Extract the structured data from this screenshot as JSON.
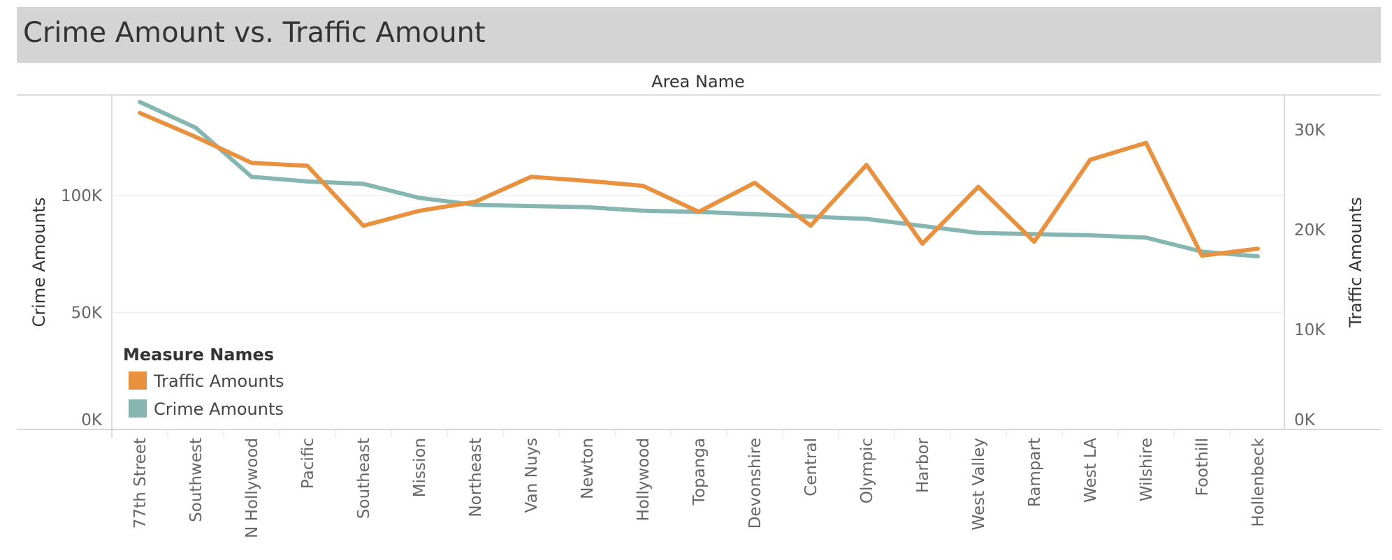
{
  "title": "Crime Amount vs. Traffic Amount",
  "chart_data": {
    "type": "line",
    "x_title": "Area Name",
    "categories": [
      "77th Street",
      "Southwest",
      "N Hollywood",
      "Pacific",
      "Southeast",
      "Mission",
      "Northeast",
      "Van Nuys",
      "Newton",
      "Hollywood",
      "Topanga",
      "Devonshire",
      "Central",
      "Olympic",
      "Harbor",
      "West Valley",
      "Rampart",
      "West LA",
      "Wilshire",
      "Foothill",
      "Hollenbeck"
    ],
    "left_axis": {
      "title": "Crime Amounts",
      "range": [
        0,
        143000
      ],
      "ticks": [
        0,
        50000,
        100000
      ],
      "tick_labels": [
        "0K",
        "50K",
        "100K"
      ]
    },
    "right_axis": {
      "title": "Traffic Amounts",
      "range": [
        0,
        33500
      ],
      "ticks": [
        0,
        10000,
        20000,
        30000
      ],
      "tick_labels": [
        "0K",
        "10K",
        "20K",
        "30K"
      ]
    },
    "series": [
      {
        "name": "Traffic Amounts",
        "axis": "right",
        "color": "#e8913f",
        "values": [
          31700,
          29300,
          26700,
          26400,
          20400,
          21900,
          22800,
          25300,
          24900,
          24400,
          21800,
          24700,
          20400,
          26500,
          18600,
          24300,
          18800,
          27000,
          28700,
          17400,
          18100
        ]
      },
      {
        "name": "Crime Amounts",
        "axis": "left",
        "color": "#86b6b2",
        "values": [
          140000,
          129000,
          108000,
          106000,
          105000,
          99000,
          96000,
          95500,
          95000,
          93500,
          93000,
          92000,
          91000,
          90000,
          87000,
          84000,
          83500,
          83000,
          82000,
          76000,
          74000
        ]
      }
    ],
    "legend": {
      "title": "Measure Names",
      "position": "bottom-left"
    },
    "grid": true
  }
}
